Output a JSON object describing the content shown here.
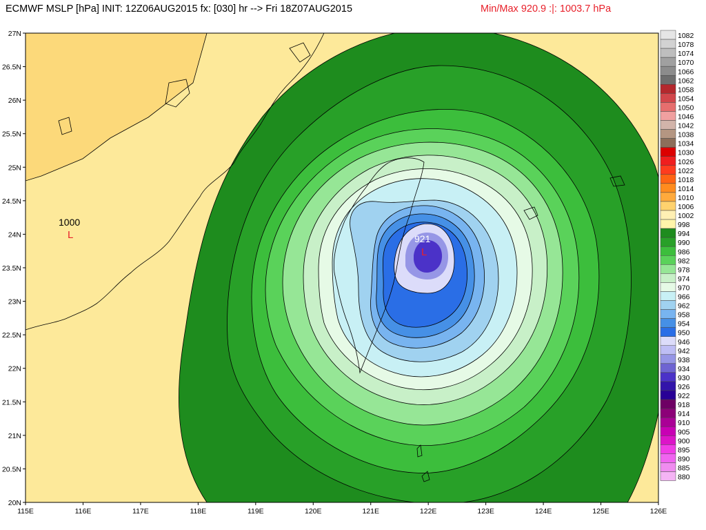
{
  "header": {
    "title": "ECMWF MSLP [hPa] INIT: 12Z06AUG2015 fx: [030] hr --> Fri 18Z07AUG2015",
    "minmax": "Min/Max 920.9 :|: 1003.7 hPa"
  },
  "axes": {
    "lat_labels": [
      "27N",
      "26.5N",
      "26N",
      "25.5N",
      "25N",
      "24.5N",
      "24N",
      "23.5N",
      "23N",
      "22.5N",
      "22N",
      "21.5N",
      "21N",
      "20.5N",
      "20N"
    ],
    "lon_labels": [
      "115E",
      "116E",
      "117E",
      "118E",
      "119E",
      "120E",
      "121E",
      "122E",
      "123E",
      "124E",
      "125E",
      "126E"
    ],
    "lat_range": [
      20,
      27
    ],
    "lon_range": [
      115,
      126
    ]
  },
  "annotations": {
    "low_west_value": "1000",
    "low_west_marker": "L",
    "low_center_value": "921",
    "low_center_marker": "L"
  },
  "legend": {
    "items": [
      {
        "label": "1082",
        "color": "#e6e6e6"
      },
      {
        "label": "1078",
        "color": "#d2d2d2"
      },
      {
        "label": "1074",
        "color": "#bebebe"
      },
      {
        "label": "1070",
        "color": "#a0a0a0"
      },
      {
        "label": "1066",
        "color": "#8c8c8c"
      },
      {
        "label": "1062",
        "color": "#6e6e6e"
      },
      {
        "label": "1058",
        "color": "#b4282d"
      },
      {
        "label": "1054",
        "color": "#d2464b"
      },
      {
        "label": "1050",
        "color": "#e66e6e"
      },
      {
        "label": "1046",
        "color": "#f0a0a0"
      },
      {
        "label": "1042",
        "color": "#d2b4aa"
      },
      {
        "label": "1038",
        "color": "#b49682"
      },
      {
        "label": "1034",
        "color": "#8c6e5a"
      },
      {
        "label": "1030",
        "color": "#dc0000"
      },
      {
        "label": "1026",
        "color": "#f01e1e"
      },
      {
        "label": "1022",
        "color": "#ff3c1e"
      },
      {
        "label": "1018",
        "color": "#ff6414"
      },
      {
        "label": "1014",
        "color": "#ff8c1e"
      },
      {
        "label": "1010",
        "color": "#ffaa3c"
      },
      {
        "label": "1006",
        "color": "#ffd26e"
      },
      {
        "label": "1002",
        "color": "#fff0b4"
      },
      {
        "label": "998",
        "color": "#fff5aa"
      },
      {
        "label": "994",
        "color": "#1e8c1e"
      },
      {
        "label": "990",
        "color": "#28a028"
      },
      {
        "label": "986",
        "color": "#3cbe3c"
      },
      {
        "label": "982",
        "color": "#5ad25a"
      },
      {
        "label": "978",
        "color": "#96e696"
      },
      {
        "label": "974",
        "color": "#c8f0c8"
      },
      {
        "label": "970",
        "color": "#e6fae6"
      },
      {
        "label": "966",
        "color": "#c8f0f5"
      },
      {
        "label": "962",
        "color": "#a0d2f0"
      },
      {
        "label": "958",
        "color": "#78b4f0"
      },
      {
        "label": "954",
        "color": "#4690e6"
      },
      {
        "label": "950",
        "color": "#2a6ee6"
      },
      {
        "label": "946",
        "color": "#dcdcfa"
      },
      {
        "label": "942",
        "color": "#bebef5"
      },
      {
        "label": "938",
        "color": "#9696e6"
      },
      {
        "label": "934",
        "color": "#6e64d2"
      },
      {
        "label": "930",
        "color": "#4b32c8"
      },
      {
        "label": "926",
        "color": "#3214aa"
      },
      {
        "label": "922",
        "color": "#280096"
      },
      {
        "label": "918",
        "color": "#6e0064"
      },
      {
        "label": "914",
        "color": "#8c0078"
      },
      {
        "label": "910",
        "color": "#aa0096"
      },
      {
        "label": "905",
        "color": "#c800b4"
      },
      {
        "label": "900",
        "color": "#dc14c8"
      },
      {
        "label": "895",
        "color": "#f03ce6"
      },
      {
        "label": "890",
        "color": "#f064f0"
      },
      {
        "label": "885",
        "color": "#f08cf0"
      },
      {
        "label": "880",
        "color": "#f5b4f5"
      }
    ]
  },
  "colors": {
    "land_dry": "#fde99a",
    "ring_994": "#1e8c1e",
    "ring_990": "#28a028",
    "ring_986": "#3cbe3c",
    "ring_982": "#5ad25a",
    "ring_978": "#96e696",
    "ring_974": "#c8f0c8",
    "ring_970": "#e6fae6",
    "ring_966": "#c8f0f5",
    "ring_962": "#a0d2f0",
    "ring_958": "#78b4f0",
    "ring_954": "#4690e6",
    "ring_950": "#2a6ee6",
    "core_946": "#dcdcfa",
    "core_938": "#9696e6",
    "core_930": "#4b32c8",
    "marker_red": "#e8202a"
  }
}
